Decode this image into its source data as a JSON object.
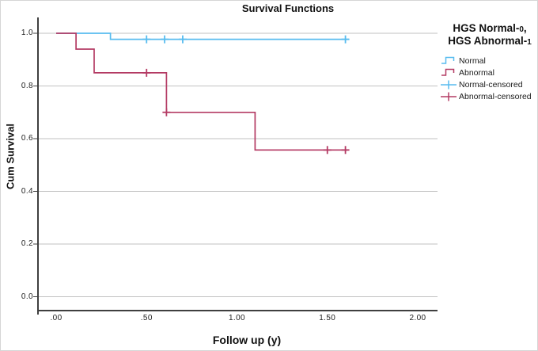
{
  "window": {
    "background": "#ffffff",
    "border_color": "#d6d6d6"
  },
  "axes_style": {
    "axis_color": "#3f3f3f",
    "grid_color": "#c2c2c2",
    "tick_text_color": "#222222"
  },
  "chart_data": {
    "type": "line",
    "subtype": "kaplan-meier-step",
    "title": "Survival Functions",
    "xlabel": "Follow up (y)",
    "ylabel": "Cum Survival",
    "xlim": [
      -0.1,
      2.11
    ],
    "ylim": [
      -0.053,
      1.06
    ],
    "grid": "horizontal-only",
    "legend_position": "right",
    "x_ticks": {
      "values": [
        0,
        0.5,
        1.0,
        1.5,
        2.0
      ],
      "labels": [
        ".00",
        ".50",
        "1.00",
        "1.50",
        "2.00"
      ]
    },
    "y_ticks": {
      "values": [
        0.0,
        0.2,
        0.4,
        0.6,
        0.8,
        1.0
      ],
      "labels": [
        "0.0",
        "0.2",
        "0.4",
        "0.6",
        "0.8",
        "1.0"
      ]
    },
    "series": [
      {
        "name": "Normal",
        "color": "#58BCEF",
        "step_points": [
          [
            0,
            1.0
          ],
          [
            0.3,
            1.0
          ],
          [
            0.3,
            0.977
          ],
          [
            1.62,
            0.977
          ]
        ],
        "censored": [
          [
            0.5,
            0.977
          ],
          [
            0.6,
            0.977
          ],
          [
            0.7,
            0.977
          ],
          [
            1.6,
            0.977
          ]
        ]
      },
      {
        "name": "Abnormal",
        "color": "#B43B64",
        "step_points": [
          [
            0,
            1.0
          ],
          [
            0.11,
            1.0
          ],
          [
            0.11,
            0.94
          ],
          [
            0.21,
            0.94
          ],
          [
            0.21,
            0.85
          ],
          [
            0.61,
            0.85
          ],
          [
            0.61,
            0.7
          ],
          [
            1.1,
            0.7
          ],
          [
            1.1,
            0.557
          ],
          [
            1.61,
            0.557
          ]
        ],
        "censored": [
          [
            0.5,
            0.85
          ],
          [
            0.61,
            0.7
          ],
          [
            1.5,
            0.557
          ],
          [
            1.6,
            0.557
          ]
        ]
      }
    ]
  },
  "legend": {
    "title1_main": "HGS Normal-",
    "title1_digit": "0",
    "title1_comma": ",",
    "title2_main": "HGS Abnormal-",
    "title2_digit": "1",
    "entries": [
      {
        "label": "Normal",
        "symbol": "step",
        "color": "#58BCEF"
      },
      {
        "label": "Abnormal",
        "symbol": "step",
        "color": "#B43B64"
      },
      {
        "label": "Normal-censored",
        "symbol": "censored",
        "color": "#58BCEF"
      },
      {
        "label": "Abnormal-censored",
        "symbol": "censored",
        "color": "#B43B64"
      }
    ]
  }
}
